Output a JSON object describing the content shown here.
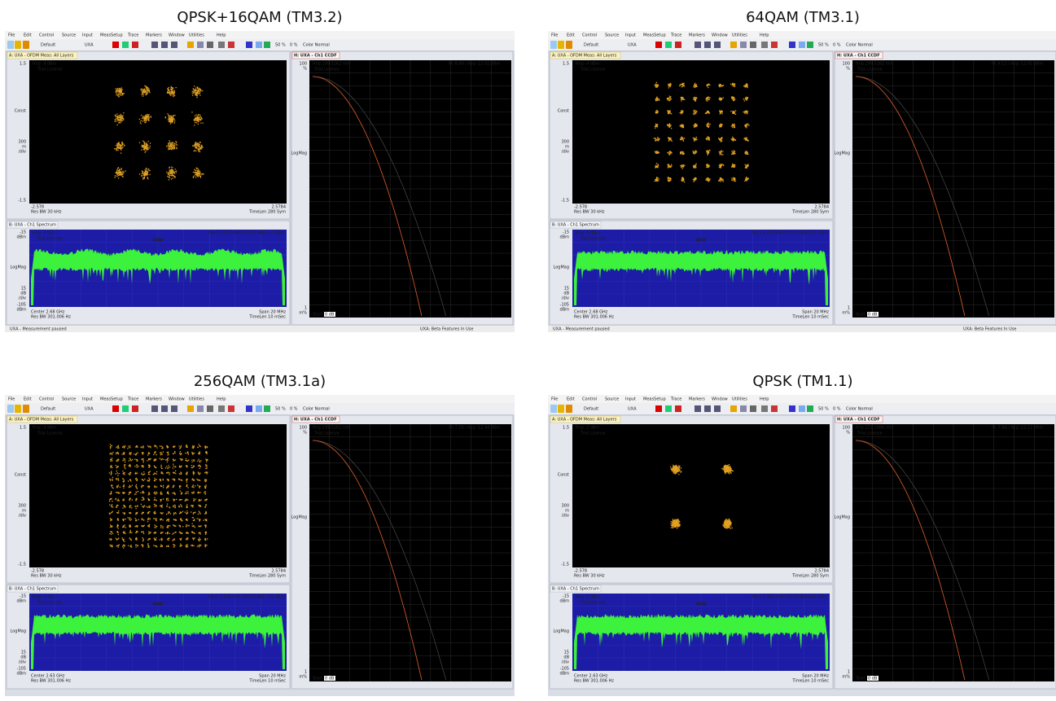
{
  "menu": [
    "File",
    "Edit",
    "Control",
    "Source",
    "Input",
    "MeasSetup",
    "Trace",
    "Markers",
    "Window",
    "Utilities",
    "Help"
  ],
  "toolbar": {
    "layout": "Default",
    "instrument": "UXA",
    "pct1": "50 %",
    "pct2": "0 %",
    "color": "Color Normal"
  },
  "window_a": {
    "tab": "A: UXA - OFDM Meas: All Layers",
    "trial": "Trial License",
    "top": "1.5",
    "format": "Const",
    "scale": "300",
    "scale_unit": "m",
    "per_div": "/div",
    "bottom": "-1.5",
    "x_left": "-2.578",
    "x_right": "2.5784",
    "res_bw": "Res BW 30 kHz",
    "time_len": "TimeLen 280 Sym"
  },
  "window_b": {
    "tab": "B: UXA - Ch1 Spectrum",
    "top": "-15",
    "top_unit": "dBm",
    "format": "LogMag",
    "scale": "15",
    "scale_unit": "dB",
    "per_div": "/div",
    "bottom": "-105",
    "bottom_unit": "dBm",
    "obw": "OBW",
    "span": "Span 20 MHz",
    "res_bw": "Res BW 301.006 Hz",
    "time_len": "TimeLen 10 mSec"
  },
  "window_h": {
    "tab": "H: UXA - Ch1 CCDF",
    "top": "100",
    "top_unit": "%",
    "format": "LogMag",
    "bottom": "1",
    "bottom_unit": "m%",
    "start": "Start",
    "start_value": "0 dB"
  },
  "status": {
    "left": "UXA - Measurement paused",
    "right": "UXA: Beta Features In Use"
  },
  "panels": [
    {
      "title": "QPSK+16QAM (TM3.2)",
      "range_a": "Rng -4 dBm",
      "range_b": "Rng -4 dBm",
      "marker": "Mkr1  2 670 000 000.00 Hz",
      "marker_value": "-99.312 dBm",
      "center": "Center 2.68 GHz",
      "range_h": "Rng 199.5262 mV",
      "peak": "Pk 8.48 / Avg -12.02 dBm"
    },
    {
      "title": "64QAM (TM3.1)",
      "range_a": "Rng -4 dBm",
      "range_b": "Rng -4 dBm",
      "marker": "Mkr1  2 670 000 000.00 Hz",
      "marker_value": "-100.524 dBm",
      "center": "Center 2.68 GHz",
      "range_h": "Rng 199.5262 mV",
      "peak": "Pk 9.13 / Avg -12.01 dBm"
    },
    {
      "title": "256QAM (TM3.1a)",
      "range_a": "Rng -4 dBm",
      "range_b": "Rng -4 dBm",
      "marker": "Mkr1  2 640 000 000.00 Hz",
      "marker_value": "-100.742 dBm",
      "center": "Center 2.63 GHz",
      "range_h": "Rng 199.5262 mV",
      "peak": "Pk 7.58 / Avg -12.44 dBm"
    },
    {
      "title": "QPSK (TM1.1)",
      "range_a": "Rng -2 dBm",
      "range_b": "Rng -2 dBm",
      "marker": "Mkr1  2 640 000 000.00 Hz",
      "marker_value": "-100.816 dBm",
      "center": "Center 2.63 GHz",
      "range_h": "Rng 251.1886 mV",
      "peak": "Pk 7.44 / Avg -12.11 dBm"
    }
  ]
}
